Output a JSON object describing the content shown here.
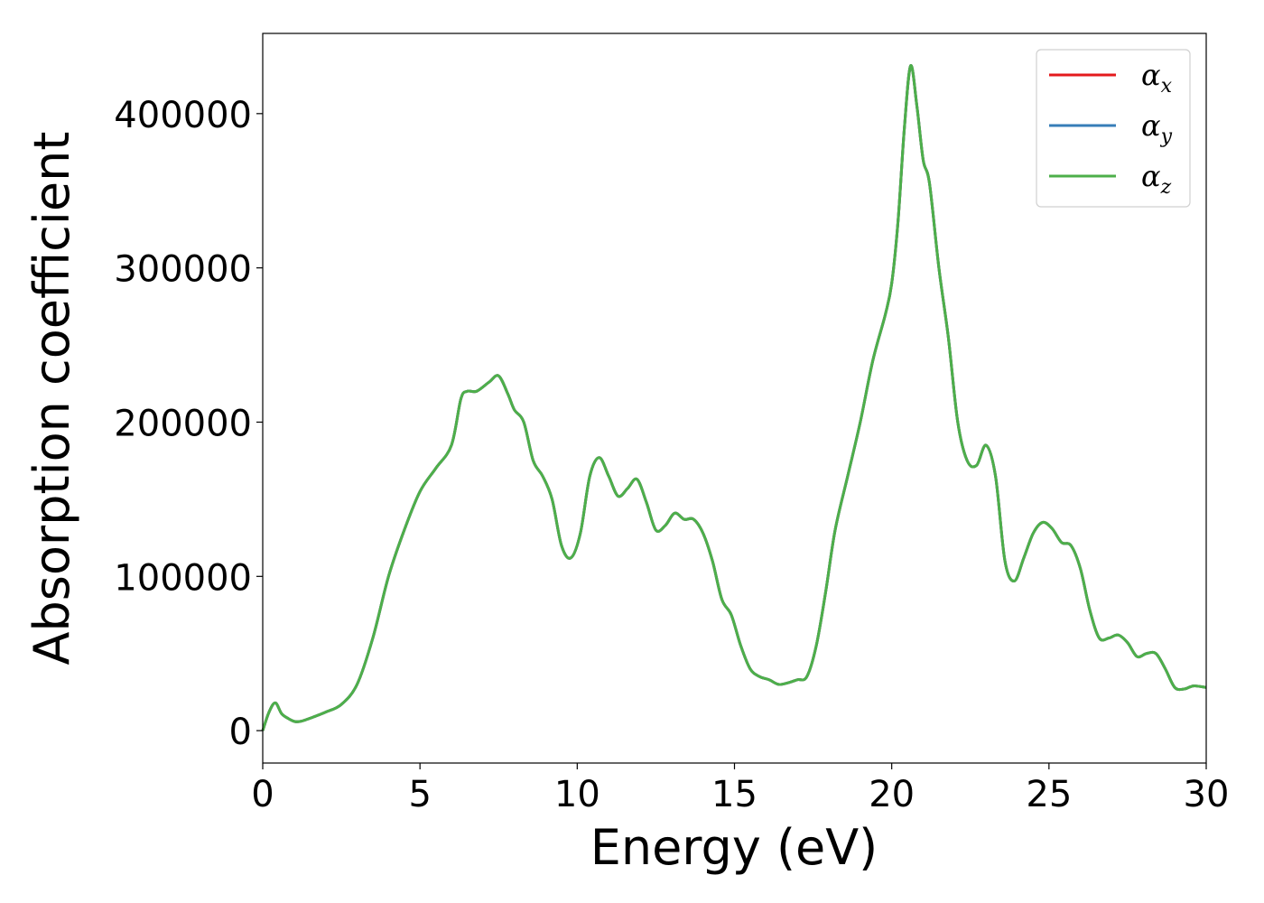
{
  "chart_data": {
    "type": "line",
    "xlabel": "Energy (eV)",
    "ylabel": "Absorption coefficient",
    "xlim": [
      0,
      30
    ],
    "ylim": [
      -21000,
      452000
    ],
    "xticks": [
      0,
      5,
      10,
      15,
      20,
      25,
      30
    ],
    "xtick_labels": [
      "0",
      "5",
      "10",
      "15",
      "20",
      "25",
      "30"
    ],
    "yticks": [
      0,
      100000,
      200000,
      300000,
      400000
    ],
    "ytick_labels": [
      "0",
      "100000",
      "200000",
      "300000",
      "400000"
    ],
    "grid": false,
    "legend_position": "top-right",
    "x": [
      0,
      0.2,
      0.4,
      0.6,
      0.8,
      1.0,
      1.2,
      1.5,
      2.0,
      2.5,
      3.0,
      3.5,
      4.0,
      4.5,
      5.0,
      5.5,
      6.0,
      6.3,
      6.5,
      6.8,
      7.2,
      7.5,
      7.8,
      8.0,
      8.3,
      8.6,
      8.9,
      9.2,
      9.5,
      9.8,
      10.1,
      10.4,
      10.7,
      11.0,
      11.3,
      11.6,
      11.9,
      12.2,
      12.5,
      12.8,
      13.1,
      13.4,
      13.7,
      14.0,
      14.3,
      14.6,
      14.9,
      15.2,
      15.5,
      15.8,
      16.1,
      16.4,
      16.7,
      17.0,
      17.3,
      17.6,
      17.9,
      18.2,
      18.6,
      19.0,
      19.4,
      19.8,
      20.0,
      20.2,
      20.4,
      20.6,
      20.8,
      21.0,
      21.2,
      21.5,
      21.8,
      22.1,
      22.4,
      22.7,
      23.0,
      23.3,
      23.6,
      23.9,
      24.2,
      24.5,
      24.8,
      25.1,
      25.4,
      25.7,
      26.0,
      26.3,
      26.6,
      26.9,
      27.2,
      27.5,
      27.8,
      28.1,
      28.4,
      28.7,
      29.0,
      29.3,
      29.6,
      30.0
    ],
    "series": [
      {
        "name": "α_x",
        "color": "#e41a1c",
        "values": [
          0,
          12000,
          18000,
          11000,
          8000,
          6000,
          6000,
          8000,
          12000,
          17000,
          30000,
          60000,
          100000,
          130000,
          155000,
          170000,
          185000,
          215000,
          220000,
          220000,
          226000,
          230000,
          218000,
          208000,
          200000,
          175000,
          165000,
          150000,
          120000,
          112000,
          128000,
          165000,
          177000,
          165000,
          152000,
          157000,
          163000,
          148000,
          130000,
          133000,
          141000,
          137000,
          137000,
          128000,
          110000,
          85000,
          75000,
          55000,
          40000,
          35000,
          33000,
          30000,
          31000,
          33000,
          35000,
          55000,
          90000,
          130000,
          165000,
          200000,
          240000,
          270000,
          290000,
          330000,
          390000,
          431000,
          405000,
          370000,
          355000,
          300000,
          255000,
          200000,
          175000,
          172000,
          185000,
          165000,
          110000,
          97000,
          112000,
          128000,
          135000,
          131000,
          122000,
          120000,
          105000,
          78000,
          60000,
          60000,
          62000,
          57000,
          48000,
          50000,
          50000,
          40000,
          28000,
          27000,
          29000,
          28000
        ]
      },
      {
        "name": "α_y",
        "color": "#377eb8",
        "values": [
          0,
          12000,
          18000,
          11000,
          8000,
          6000,
          6000,
          8000,
          12000,
          17000,
          30000,
          60000,
          100000,
          130000,
          155000,
          170000,
          185000,
          215000,
          220000,
          220000,
          226000,
          230000,
          218000,
          208000,
          200000,
          175000,
          165000,
          150000,
          120000,
          112000,
          128000,
          165000,
          177000,
          165000,
          152000,
          157000,
          163000,
          148000,
          130000,
          133000,
          141000,
          137000,
          137000,
          128000,
          110000,
          85000,
          75000,
          55000,
          40000,
          35000,
          33000,
          30000,
          31000,
          33000,
          35000,
          55000,
          90000,
          130000,
          165000,
          200000,
          240000,
          270000,
          290000,
          330000,
          390000,
          431000,
          405000,
          370000,
          355000,
          300000,
          255000,
          200000,
          175000,
          172000,
          185000,
          165000,
          110000,
          97000,
          112000,
          128000,
          135000,
          131000,
          122000,
          120000,
          105000,
          78000,
          60000,
          60000,
          62000,
          57000,
          48000,
          50000,
          50000,
          40000,
          28000,
          27000,
          29000,
          28000
        ]
      },
      {
        "name": "α_z",
        "color": "#4daf4a",
        "values": [
          0,
          12000,
          18000,
          11000,
          8000,
          6000,
          6000,
          8000,
          12000,
          17000,
          30000,
          60000,
          100000,
          130000,
          155000,
          170000,
          185000,
          215000,
          220000,
          220000,
          226000,
          230000,
          218000,
          208000,
          200000,
          175000,
          165000,
          150000,
          120000,
          112000,
          128000,
          165000,
          177000,
          165000,
          152000,
          157000,
          163000,
          148000,
          130000,
          133000,
          141000,
          137000,
          137000,
          128000,
          110000,
          85000,
          75000,
          55000,
          40000,
          35000,
          33000,
          30000,
          31000,
          33000,
          35000,
          55000,
          90000,
          130000,
          165000,
          200000,
          240000,
          270000,
          290000,
          330000,
          390000,
          431000,
          405000,
          370000,
          355000,
          300000,
          255000,
          200000,
          175000,
          172000,
          185000,
          165000,
          110000,
          97000,
          112000,
          128000,
          135000,
          131000,
          122000,
          120000,
          105000,
          78000,
          60000,
          60000,
          62000,
          57000,
          48000,
          50000,
          50000,
          40000,
          28000,
          27000,
          29000,
          28000
        ]
      }
    ],
    "legend": [
      {
        "symbol": "α",
        "sub": "x",
        "color": "#e41a1c"
      },
      {
        "symbol": "α",
        "sub": "y",
        "color": "#377eb8"
      },
      {
        "symbol": "α",
        "sub": "z",
        "color": "#4daf4a"
      }
    ]
  }
}
